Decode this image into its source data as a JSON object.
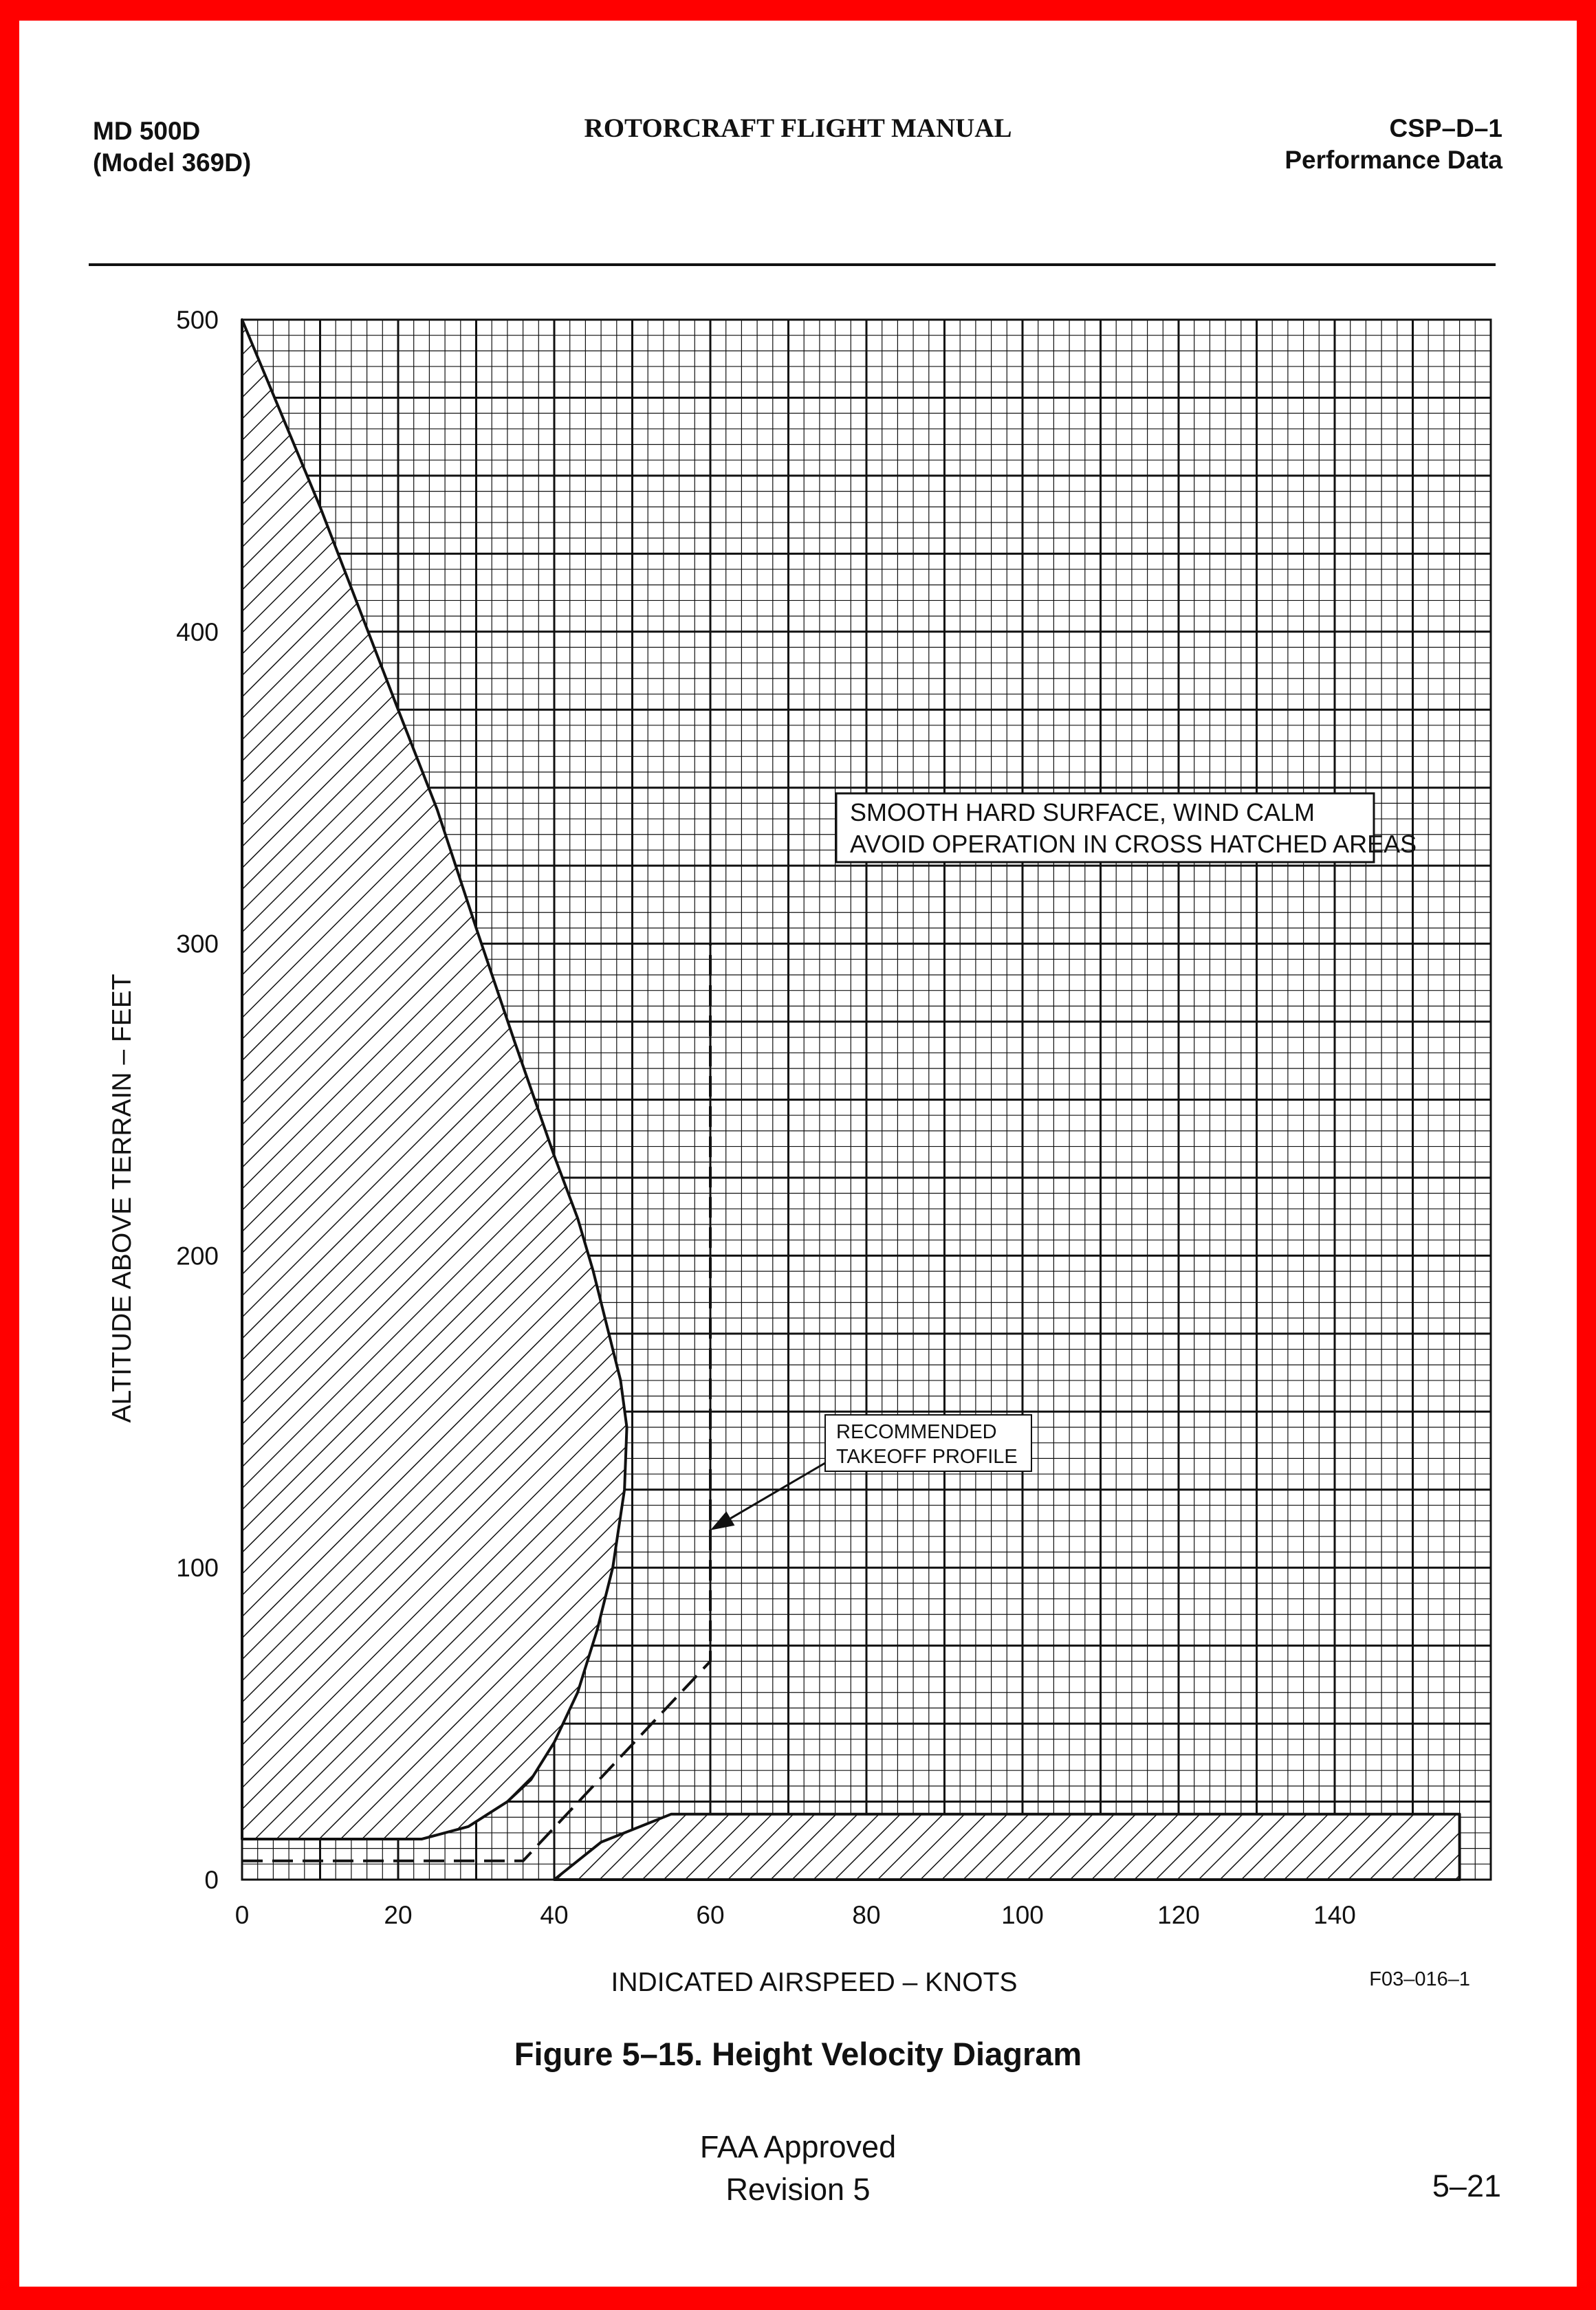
{
  "header": {
    "left_line1": "MD 500D",
    "left_line2": "(Model 369D)",
    "center": "ROTORCRAFT FLIGHT MANUAL",
    "right_line1": "CSP–D–1",
    "right_line2": "Performance Data"
  },
  "figure_caption": "Figure 5–15. Height Velocity Diagram",
  "footer": {
    "line1": "FAA Approved",
    "line2": "Revision 5",
    "page_number": "5–21"
  },
  "chart_data": {
    "type": "area",
    "title": "",
    "xlabel": "INDICATED AIRSPEED – KNOTS",
    "ylabel": "ALTITUDE ABOVE TERRAIN – FEET",
    "xlim": [
      0,
      160
    ],
    "ylim": [
      0,
      500
    ],
    "x_ticks": [
      0,
      20,
      40,
      60,
      80,
      100,
      120,
      140
    ],
    "y_ticks": [
      0,
      100,
      200,
      300,
      400,
      500
    ],
    "grid": true,
    "colors": {
      "ink": "#111111",
      "border": "#ff0000"
    },
    "annotations": {
      "conditions_line1": "SMOOTH HARD SURFACE, WIND CALM",
      "conditions_line2": "AVOID OPERATION IN CROSS HATCHED AREAS",
      "profile_line1": "RECOMMENDED",
      "profile_line2": "TAKEOFF PROFILE",
      "profile_arrow_target": [
        60,
        112
      ],
      "figure_code": "F03–016–1"
    },
    "avoid_region_upper": [
      [
        0,
        500
      ],
      [
        10,
        440
      ],
      [
        20,
        375
      ],
      [
        25,
        343
      ],
      [
        30,
        305
      ],
      [
        35,
        268
      ],
      [
        40,
        232
      ],
      [
        43,
        212
      ],
      [
        45,
        195
      ],
      [
        47,
        175
      ],
      [
        48.5,
        160
      ],
      [
        49.3,
        145
      ],
      [
        49,
        125
      ],
      [
        47.5,
        100
      ],
      [
        45.5,
        80
      ],
      [
        43,
        60
      ],
      [
        40,
        44
      ],
      [
        37,
        32
      ],
      [
        34,
        25
      ],
      [
        29,
        17
      ],
      [
        23,
        13
      ],
      [
        0,
        13
      ]
    ],
    "avoid_region_lower": [
      [
        40,
        0
      ],
      [
        156,
        0
      ],
      [
        156,
        21
      ],
      [
        55,
        21
      ],
      [
        46,
        12
      ],
      [
        40,
        0
      ]
    ],
    "takeoff_profile": [
      [
        0,
        6
      ],
      [
        36,
        6
      ],
      [
        60,
        70
      ],
      [
        60,
        300
      ]
    ]
  }
}
